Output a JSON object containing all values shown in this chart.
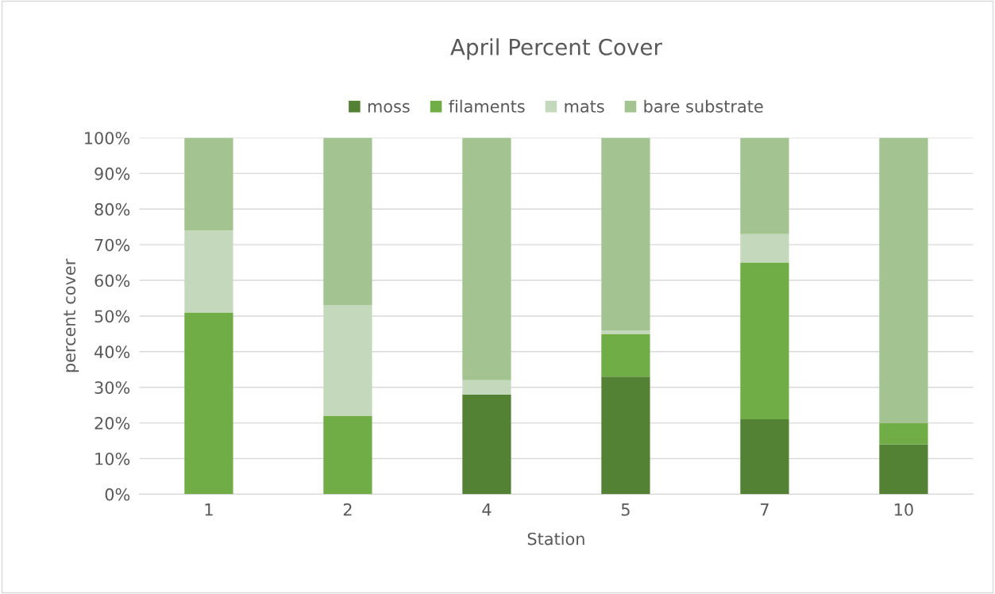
{
  "chart_data": {
    "type": "bar",
    "stacked": true,
    "title": "April Percent Cover",
    "xlabel": "Station",
    "ylabel": "percent cover",
    "categories": [
      "1",
      "2",
      "4",
      "5",
      "7",
      "10"
    ],
    "series": [
      {
        "name": "moss",
        "color": "#548235",
        "values": [
          0,
          0,
          28,
          33,
          21,
          14
        ]
      },
      {
        "name": "filaments",
        "color": "#70ad47",
        "values": [
          51,
          22,
          0,
          12,
          44,
          6
        ]
      },
      {
        "name": "mats",
        "color": "#c4d8bc",
        "values": [
          23,
          31,
          4,
          1,
          8,
          0
        ]
      },
      {
        "name": "bare substrate",
        "color": "#a3c490",
        "values": [
          26,
          47,
          68,
          54,
          27,
          80
        ]
      }
    ],
    "ylim": [
      0,
      100
    ],
    "yticks": [
      {
        "value": 0,
        "label": "0%"
      },
      {
        "value": 10,
        "label": "10%"
      },
      {
        "value": 20,
        "label": "20%"
      },
      {
        "value": 30,
        "label": "30%"
      },
      {
        "value": 40,
        "label": "40%"
      },
      {
        "value": 50,
        "label": "50%"
      },
      {
        "value": 60,
        "label": "60%"
      },
      {
        "value": 70,
        "label": "70%"
      },
      {
        "value": 80,
        "label": "80%"
      },
      {
        "value": 90,
        "label": "90%"
      },
      {
        "value": 100,
        "label": "100%"
      }
    ],
    "grid": "y",
    "legend": "top"
  }
}
